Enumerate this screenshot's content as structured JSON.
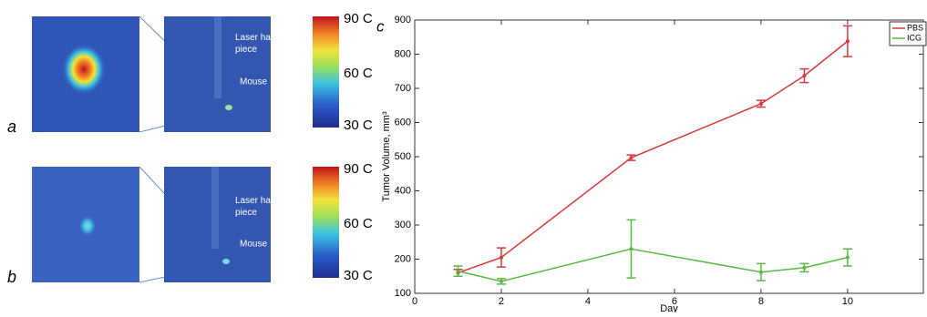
{
  "panels": [
    {
      "label": "a",
      "scale_labels": [
        "90 C",
        "60 C",
        "30 C"
      ],
      "annotations": [
        "Laser hand piece",
        "Mouse"
      ]
    },
    {
      "label": "b",
      "scale_labels": [
        "90 C",
        "60 C",
        "30 C"
      ],
      "annotations": [
        "Laser hand piece",
        "Mouse"
      ]
    }
  ],
  "chart_data": {
    "type": "line",
    "panel_label": "c",
    "x_label": "Day",
    "y_label": "Tumor Volume, mm³",
    "xlim": [
      0,
      11.75
    ],
    "xticks": [
      0,
      2,
      4,
      6,
      8,
      10
    ],
    "ylim": [
      100,
      900
    ],
    "yticks": [
      100,
      200,
      300,
      400,
      500,
      600,
      700,
      800,
      900
    ],
    "grid": false,
    "legend": "upper right",
    "x": [
      1,
      2,
      5,
      8,
      9,
      10
    ],
    "series": [
      {
        "name": "PBS",
        "color": "#d9393a",
        "values": [
          160,
          205,
          497,
          655,
          737,
          838
        ],
        "errors": [
          10,
          28,
          8,
          10,
          20,
          45
        ]
      },
      {
        "name": "ICG",
        "color": "#5bb845",
        "values": [
          165,
          135,
          230,
          162,
          175,
          205
        ],
        "errors": [
          15,
          8,
          85,
          25,
          12,
          25
        ]
      }
    ]
  }
}
